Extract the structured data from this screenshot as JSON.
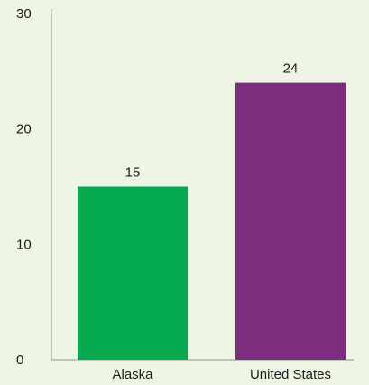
{
  "chart_data": {
    "type": "bar",
    "categories": [
      "Alaska",
      "United States"
    ],
    "values": [
      15,
      24
    ],
    "colors": [
      "#02a94f",
      "#7b2d7e"
    ],
    "ylim": [
      0,
      30
    ],
    "yticks": [
      "0",
      "10",
      "20",
      "30"
    ],
    "data_labels": [
      "15",
      "24"
    ],
    "grid": false,
    "legend": "none"
  }
}
